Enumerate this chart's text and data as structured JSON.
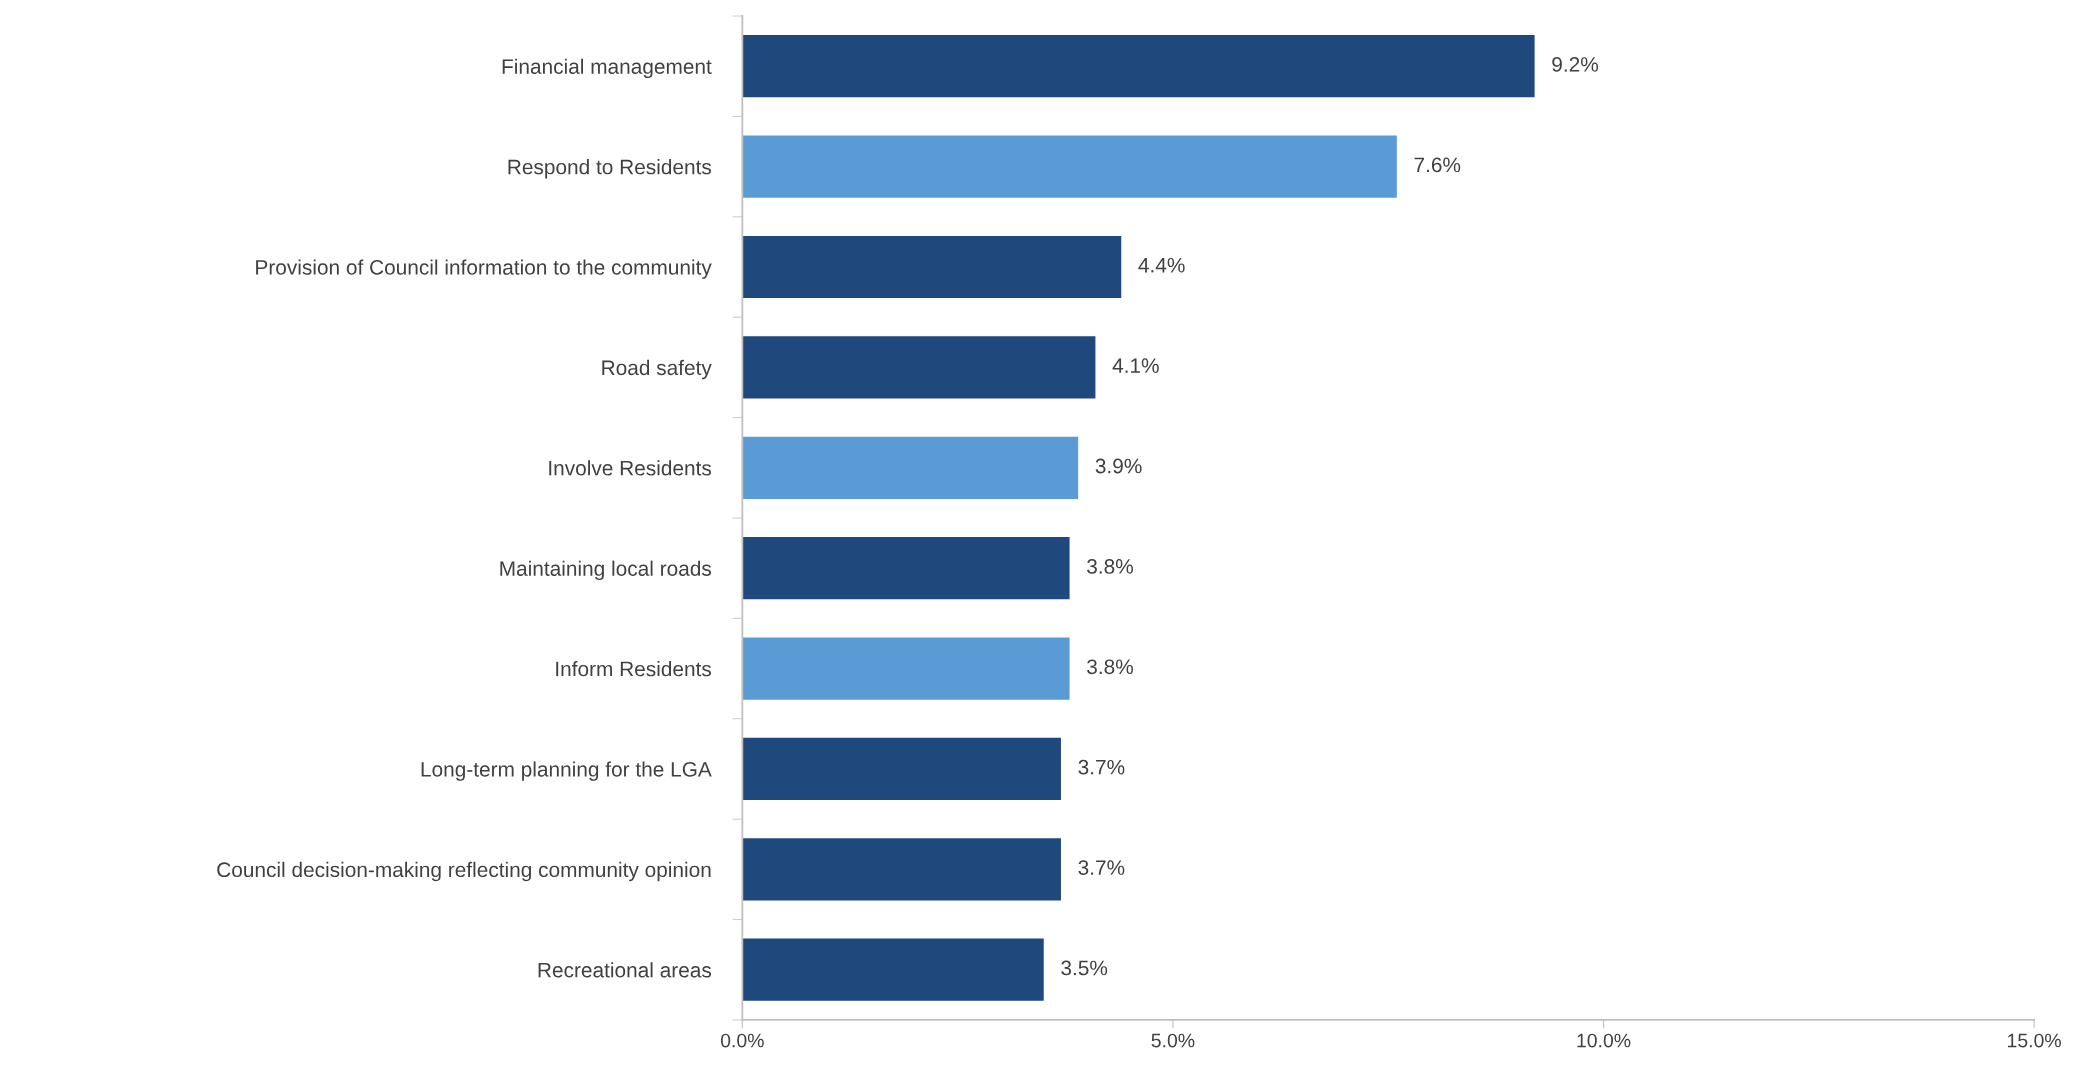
{
  "chart_data": {
    "type": "bar",
    "orientation": "horizontal",
    "categories": [
      "Financial management",
      "Respond to Residents",
      "Provision of Council information to the community",
      "Road safety",
      "Involve Residents",
      "Maintaining local roads",
      "Inform Residents",
      "Long-term planning for the LGA",
      "Council decision-making reflecting community opinion",
      "Recreational areas"
    ],
    "values": [
      9.2,
      7.6,
      4.4,
      4.1,
      3.9,
      3.8,
      3.8,
      3.7,
      3.7,
      3.5
    ],
    "colors": [
      "#1f497d",
      "#5b9bd5",
      "#1f497d",
      "#1f497d",
      "#5b9bd5",
      "#1f497d",
      "#5b9bd5",
      "#1f497d",
      "#1f497d",
      "#1f497d"
    ],
    "value_labels": [
      "9.2%",
      "7.6%",
      "4.4%",
      "4.1%",
      "3.9%",
      "3.8%",
      "3.8%",
      "3.7%",
      "3.7%",
      "3.5%"
    ],
    "xlim": [
      0,
      15
    ],
    "xticks": [
      {
        "value": 0,
        "label": "0.0%"
      },
      {
        "value": 5,
        "label": "5.0%"
      },
      {
        "value": 10,
        "label": "10.0%"
      },
      {
        "value": 15,
        "label": "15.0%"
      }
    ],
    "grid": false,
    "legend": false
  }
}
